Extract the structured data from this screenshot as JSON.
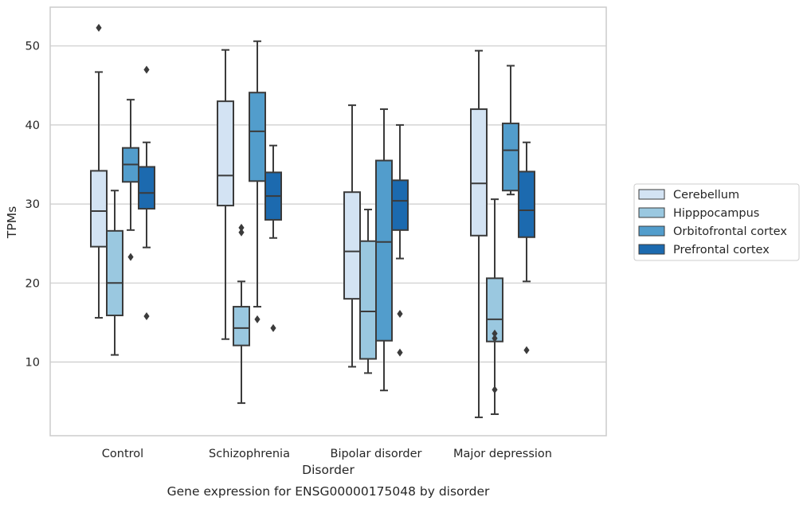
{
  "chart_data": {
    "type": "box",
    "title": "Gene expression for ENSG00000175048 by disorder",
    "xlabel": "Disorder",
    "ylabel": "TPMs",
    "ylim": [
      0.5,
      55
    ],
    "yticks": [
      10,
      20,
      30,
      40,
      50
    ],
    "grid": true,
    "legend_position": "right",
    "categories": [
      "Control",
      "Schizophrenia",
      "Bipolar disorder",
      "Major depression"
    ],
    "series": [
      {
        "name": "Cerebellum",
        "color": "#d3e3f3",
        "boxes": [
          {
            "whisker_low": 15.6,
            "q1": 24.6,
            "median": 29.1,
            "q3": 34.2,
            "whisker_high": 46.7,
            "outliers": [
              52.3
            ]
          },
          {
            "whisker_low": 12.9,
            "q1": 29.8,
            "median": 33.6,
            "q3": 43.0,
            "whisker_high": 49.5,
            "outliers": []
          },
          {
            "whisker_low": 9.4,
            "q1": 18.0,
            "median": 24.0,
            "q3": 31.5,
            "whisker_high": 42.5,
            "outliers": []
          },
          {
            "whisker_low": 3.0,
            "q1": 26.0,
            "median": 32.6,
            "q3": 42.0,
            "whisker_high": 49.4,
            "outliers": []
          }
        ]
      },
      {
        "name": "Hipppocampus",
        "color": "#9ac8e0",
        "boxes": [
          {
            "whisker_low": 10.9,
            "q1": 15.9,
            "median": 20.0,
            "q3": 26.6,
            "whisker_high": 31.7,
            "outliers": []
          },
          {
            "whisker_low": 4.8,
            "q1": 12.1,
            "median": 14.3,
            "q3": 17.0,
            "whisker_high": 20.2,
            "outliers": [
              26.4,
              27.0
            ]
          },
          {
            "whisker_low": 8.6,
            "q1": 10.4,
            "median": 16.4,
            "q3": 25.3,
            "whisker_high": 29.3,
            "outliers": []
          },
          {
            "whisker_low": 3.4,
            "q1": 12.6,
            "median": 15.4,
            "q3": 20.6,
            "whisker_high": 30.6,
            "outliers": [
              6.5,
              13.0,
              13.6
            ]
          }
        ]
      },
      {
        "name": "Orbitofrontal cortex",
        "color": "#529dcc",
        "boxes": [
          {
            "whisker_low": 26.7,
            "q1": 32.8,
            "median": 35.0,
            "q3": 37.1,
            "whisker_high": 43.2,
            "outliers": [
              23.3
            ]
          },
          {
            "whisker_low": 17.0,
            "q1": 32.9,
            "median": 39.2,
            "q3": 44.1,
            "whisker_high": 50.6,
            "outliers": [
              15.4
            ]
          },
          {
            "whisker_low": 6.4,
            "q1": 12.7,
            "median": 25.2,
            "q3": 35.5,
            "whisker_high": 42.0,
            "outliers": []
          },
          {
            "whisker_low": 31.2,
            "q1": 31.7,
            "median": 36.8,
            "q3": 40.2,
            "whisker_high": 47.5,
            "outliers": []
          }
        ]
      },
      {
        "name": "Prefrontal cortex",
        "color": "#1c6aaf",
        "boxes": [
          {
            "whisker_low": 24.5,
            "q1": 29.4,
            "median": 31.4,
            "q3": 34.7,
            "whisker_high": 37.8,
            "outliers": [
              15.8,
              47.0
            ]
          },
          {
            "whisker_low": 25.7,
            "q1": 28.0,
            "median": 31.0,
            "q3": 34.0,
            "whisker_high": 37.4,
            "outliers": [
              14.3
            ]
          },
          {
            "whisker_low": 23.1,
            "q1": 26.7,
            "median": 30.4,
            "q3": 33.0,
            "whisker_high": 40.0,
            "outliers": [
              11.2,
              16.1
            ]
          },
          {
            "whisker_low": 20.2,
            "q1": 25.8,
            "median": 29.2,
            "q3": 34.1,
            "whisker_high": 37.8,
            "outliers": [
              11.5
            ]
          }
        ]
      }
    ]
  }
}
